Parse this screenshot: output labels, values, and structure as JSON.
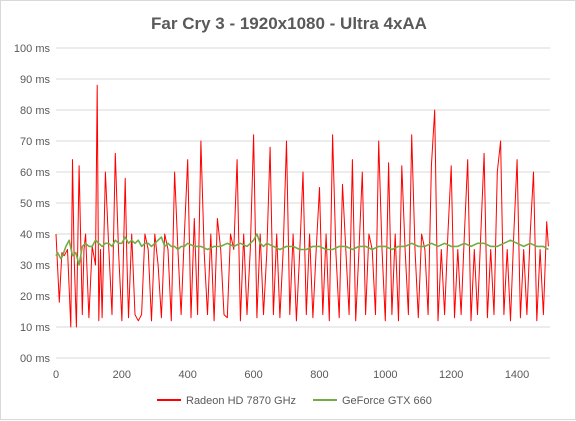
{
  "chart_data": {
    "type": "line",
    "title": "Far Cry 3 - 1920x1080 - Ultra 4xAA",
    "xlabel": "",
    "ylabel": "",
    "xlim": [
      0,
      1500
    ],
    "ylim": [
      0,
      100
    ],
    "x_ticks": [
      0,
      200,
      400,
      600,
      800,
      1000,
      1200,
      1400
    ],
    "y_ticks": [
      0,
      10,
      20,
      30,
      40,
      50,
      60,
      70,
      80,
      90,
      100
    ],
    "y_tick_labels": [
      "00 ms",
      "10 ms",
      "20 ms",
      "30 ms",
      "40 ms",
      "50 ms",
      "60 ms",
      "70 ms",
      "80 ms",
      "90 ms",
      "100 ms"
    ],
    "grid": "horizontal",
    "legend_position": "bottom",
    "series": [
      {
        "name": "Radeon HD 7870 GHz",
        "color": "#ff0000",
        "x": [
          0,
          10,
          18,
          25,
          35,
          45,
          50,
          55,
          62,
          70,
          80,
          85,
          90,
          100,
          110,
          120,
          125,
          130,
          135,
          140,
          150,
          160,
          170,
          180,
          190,
          200,
          210,
          215,
          220,
          230,
          240,
          250,
          260,
          270,
          280,
          290,
          300,
          310,
          320,
          330,
          340,
          350,
          360,
          370,
          380,
          390,
          400,
          410,
          420,
          430,
          440,
          450,
          460,
          470,
          480,
          490,
          500,
          510,
          520,
          530,
          540,
          550,
          560,
          570,
          580,
          590,
          600,
          610,
          620,
          630,
          640,
          650,
          660,
          670,
          680,
          690,
          700,
          710,
          720,
          730,
          740,
          750,
          760,
          770,
          780,
          790,
          800,
          810,
          820,
          830,
          840,
          850,
          860,
          870,
          880,
          890,
          900,
          910,
          920,
          930,
          940,
          950,
          960,
          970,
          980,
          990,
          1000,
          1010,
          1020,
          1030,
          1040,
          1050,
          1060,
          1070,
          1080,
          1090,
          1100,
          1110,
          1120,
          1130,
          1140,
          1150,
          1160,
          1170,
          1180,
          1190,
          1200,
          1210,
          1220,
          1230,
          1240,
          1250,
          1260,
          1270,
          1280,
          1290,
          1300,
          1310,
          1320,
          1330,
          1340,
          1350,
          1360,
          1370,
          1380,
          1390,
          1400,
          1410,
          1420,
          1430,
          1440,
          1450,
          1460,
          1470,
          1480,
          1490,
          1495
        ],
        "values": [
          40,
          18,
          34,
          33,
          35,
          10,
          64,
          33,
          10,
          62,
          14,
          35,
          40,
          13,
          36,
          30,
          88,
          12,
          35,
          13,
          60,
          36,
          14,
          66,
          34,
          12,
          58,
          33,
          13,
          40,
          14,
          12,
          14,
          40,
          35,
          12,
          40,
          30,
          13,
          40,
          35,
          12,
          60,
          35,
          14,
          40,
          64,
          13,
          45,
          14,
          70,
          34,
          14,
          40,
          12,
          45,
          35,
          14,
          13,
          40,
          35,
          64,
          12,
          40,
          14,
          35,
          72,
          13,
          40,
          14,
          34,
          68,
          14,
          40,
          13,
          35,
          70,
          14,
          40,
          12,
          34,
          60,
          14,
          40,
          13,
          35,
          55,
          14,
          40,
          12,
          72,
          34,
          13,
          56,
          35,
          14,
          64,
          12,
          35,
          60,
          14,
          40,
          35,
          14,
          70,
          35,
          12,
          63,
          14,
          40,
          12,
          62,
          35,
          14,
          72,
          35,
          13,
          40,
          35,
          14,
          62,
          80,
          12,
          35,
          14,
          40,
          62,
          13,
          35,
          14,
          40,
          64,
          12,
          35,
          14,
          40,
          66,
          13,
          35,
          14,
          60,
          70,
          14,
          35,
          12,
          40,
          64,
          13,
          35,
          14,
          40,
          60,
          12,
          35,
          14,
          44,
          36
        ]
      },
      {
        "name": "GeForce GTX 660",
        "color": "#70ad47",
        "x": [
          0,
          5,
          15,
          20,
          30,
          40,
          50,
          60,
          70,
          80,
          90,
          100,
          110,
          120,
          130,
          140,
          150,
          160,
          170,
          180,
          190,
          200,
          210,
          220,
          230,
          240,
          250,
          260,
          270,
          280,
          290,
          300,
          310,
          320,
          330,
          340,
          350,
          360,
          370,
          380,
          390,
          400,
          420,
          440,
          460,
          480,
          500,
          520,
          540,
          560,
          580,
          600,
          610,
          620,
          630,
          640,
          660,
          680,
          700,
          720,
          740,
          760,
          780,
          800,
          820,
          840,
          860,
          880,
          900,
          920,
          940,
          960,
          980,
          1000,
          1020,
          1040,
          1060,
          1080,
          1100,
          1120,
          1140,
          1160,
          1180,
          1200,
          1220,
          1240,
          1260,
          1280,
          1300,
          1320,
          1340,
          1360,
          1380,
          1400,
          1420,
          1440,
          1460,
          1480,
          1495
        ],
        "values": [
          33,
          34,
          32,
          33,
          36,
          38,
          33,
          34,
          30,
          36,
          37,
          36,
          36,
          38,
          37,
          36,
          37,
          37,
          36,
          38,
          37,
          37,
          39,
          37,
          38,
          37,
          38,
          36,
          37,
          37,
          36,
          37,
          38,
          39,
          36,
          37,
          36,
          36,
          35,
          36,
          36,
          37,
          36,
          36,
          35,
          36,
          36,
          37,
          36,
          37,
          36,
          38,
          40,
          37,
          36,
          37,
          36,
          35,
          36,
          36,
          35,
          35,
          36,
          36,
          35,
          35,
          36,
          36,
          35,
          36,
          36,
          35,
          36,
          36,
          35,
          36,
          36,
          37,
          36,
          36,
          37,
          36,
          37,
          36,
          36,
          37,
          36,
          37,
          37,
          36,
          36,
          37,
          38,
          37,
          36,
          37,
          36,
          36,
          35
        ]
      }
    ]
  }
}
